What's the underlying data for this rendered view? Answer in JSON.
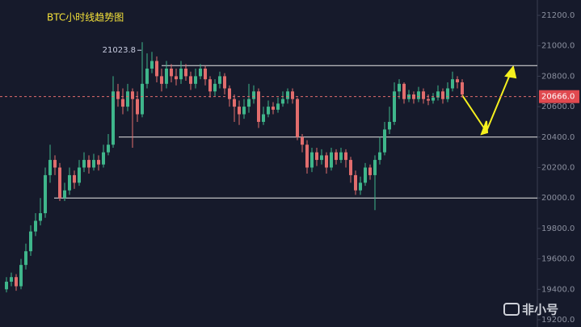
{
  "chart_data": {
    "type": "candlestick",
    "title": "BTC小时线趋势图",
    "open": [
      19400,
      19450,
      19480,
      19420,
      19560,
      19650,
      19780,
      19850,
      19900,
      20150,
      20250,
      20200,
      20000,
      20050,
      20150,
      20100,
      20200,
      20250,
      20200,
      20250,
      20220,
      20300,
      20350,
      20700,
      20650,
      20600,
      20700,
      20650,
      20550,
      20750,
      20850,
      20900,
      20800,
      20750,
      20850,
      20800,
      20780,
      20850,
      20800,
      20750,
      20800,
      20850,
      20780,
      20700,
      20750,
      20800,
      20720,
      20650,
      20600,
      20550,
      20600,
      20650,
      20700,
      20500,
      20550,
      20600,
      20580,
      20620,
      20650,
      20700,
      20650,
      20400,
      20350,
      20200,
      20300,
      20250,
      20280,
      20200,
      20300,
      20250,
      20300,
      20250,
      20150,
      20050,
      20100,
      20200,
      20150,
      20250,
      20300,
      20450,
      20500,
      20700,
      20750,
      20650,
      20680,
      20650,
      20700,
      20650,
      20640,
      20660,
      20700,
      20650,
      20720,
      20780,
      20760
    ],
    "close": [
      19450,
      19480,
      19420,
      19560,
      19650,
      19780,
      19850,
      19900,
      20150,
      20250,
      20200,
      20000,
      20050,
      20150,
      20100,
      20200,
      20250,
      20200,
      20250,
      20220,
      20300,
      20350,
      20700,
      20650,
      20600,
      20700,
      20650,
      20550,
      20750,
      20850,
      20900,
      20800,
      20750,
      20850,
      20800,
      20780,
      20850,
      20800,
      20750,
      20800,
      20850,
      20780,
      20700,
      20750,
      20800,
      20720,
      20650,
      20600,
      20550,
      20600,
      20650,
      20700,
      20500,
      20550,
      20600,
      20580,
      20620,
      20650,
      20700,
      20650,
      20400,
      20350,
      20200,
      20300,
      20250,
      20280,
      20200,
      20300,
      20250,
      20300,
      20250,
      20150,
      20050,
      20100,
      20200,
      20150,
      20250,
      20300,
      20450,
      20500,
      20700,
      20750,
      20650,
      20680,
      20650,
      20700,
      20650,
      20640,
      20660,
      20700,
      20650,
      20720,
      20780,
      20760,
      20680
    ],
    "high": [
      19480,
      19510,
      19500,
      19600,
      19700,
      19820,
      19900,
      20000,
      20200,
      20350,
      20280,
      20230,
      20100,
      20200,
      20180,
      20250,
      20300,
      20280,
      20290,
      20280,
      20350,
      20420,
      20800,
      20750,
      20720,
      20750,
      20720,
      20700,
      21023.8,
      20950,
      20960,
      20930,
      20850,
      20900,
      20880,
      20850,
      20900,
      20880,
      20830,
      20850,
      20880,
      20870,
      20800,
      20780,
      20830,
      20820,
      20740,
      20680,
      20640,
      20650,
      20750,
      20740,
      20720,
      20600,
      20640,
      20630,
      20660,
      20700,
      20720,
      20720,
      20660,
      20420,
      20380,
      20330,
      20330,
      20320,
      20300,
      20330,
      20320,
      20330,
      20320,
      20270,
      20180,
      20140,
      20230,
      20220,
      20280,
      20400,
      20500,
      20600,
      20760,
      20780,
      20760,
      20710,
      20700,
      20730,
      20720,
      20680,
      20690,
      20740,
      20720,
      20760,
      20830,
      20800,
      20780
    ],
    "low": [
      19380,
      19420,
      19390,
      19400,
      19530,
      19620,
      19750,
      19820,
      19870,
      20100,
      20150,
      19980,
      19980,
      20020,
      20060,
      20080,
      20170,
      20160,
      20180,
      20180,
      20200,
      20280,
      20330,
      20600,
      20550,
      20570,
      20330,
      20500,
      20530,
      20720,
      20820,
      20760,
      20700,
      20720,
      20760,
      20740,
      20750,
      20770,
      20710,
      20720,
      20780,
      20740,
      20660,
      20670,
      20720,
      20680,
      20600,
      20500,
      20480,
      20520,
      20560,
      20620,
      20460,
      20480,
      20530,
      20550,
      20560,
      20600,
      20620,
      20620,
      20380,
      20300,
      20160,
      20170,
      20210,
      20220,
      20160,
      20180,
      20220,
      20230,
      20200,
      20100,
      20020,
      20020,
      20080,
      20120,
      19920,
      20220,
      20280,
      20420,
      20480,
      20650,
      20620,
      20630,
      20620,
      20630,
      20620,
      20610,
      20620,
      20640,
      20620,
      20630,
      20700,
      20720,
      20660
    ],
    "up_color": "#3fb68b",
    "down_color": "#e26d6d",
    "ylim": [
      19200,
      21200
    ],
    "yticks": [
      {
        "value": 19200,
        "label": "19200.0"
      },
      {
        "value": 19400,
        "label": "19400.0"
      },
      {
        "value": 19600,
        "label": "19600.0"
      },
      {
        "value": 19800,
        "label": "19800.0"
      },
      {
        "value": 20000,
        "label": "20000.0"
      },
      {
        "value": 20200,
        "label": "20200.0"
      },
      {
        "value": 20400,
        "label": "20400.0"
      },
      {
        "value": 20600,
        "label": "20600.0"
      },
      {
        "value": 20800,
        "label": "20800.0"
      },
      {
        "value": 21000,
        "label": "21000.0"
      },
      {
        "value": 21200,
        "label": "21200.0"
      }
    ],
    "levels": [
      20870,
      20400,
      20000
    ],
    "last_price": {
      "value": 20666,
      "label": "20666.0"
    },
    "high_annotation": {
      "value": 21023.8,
      "label": "21023.8"
    },
    "watermark": "非小号"
  }
}
